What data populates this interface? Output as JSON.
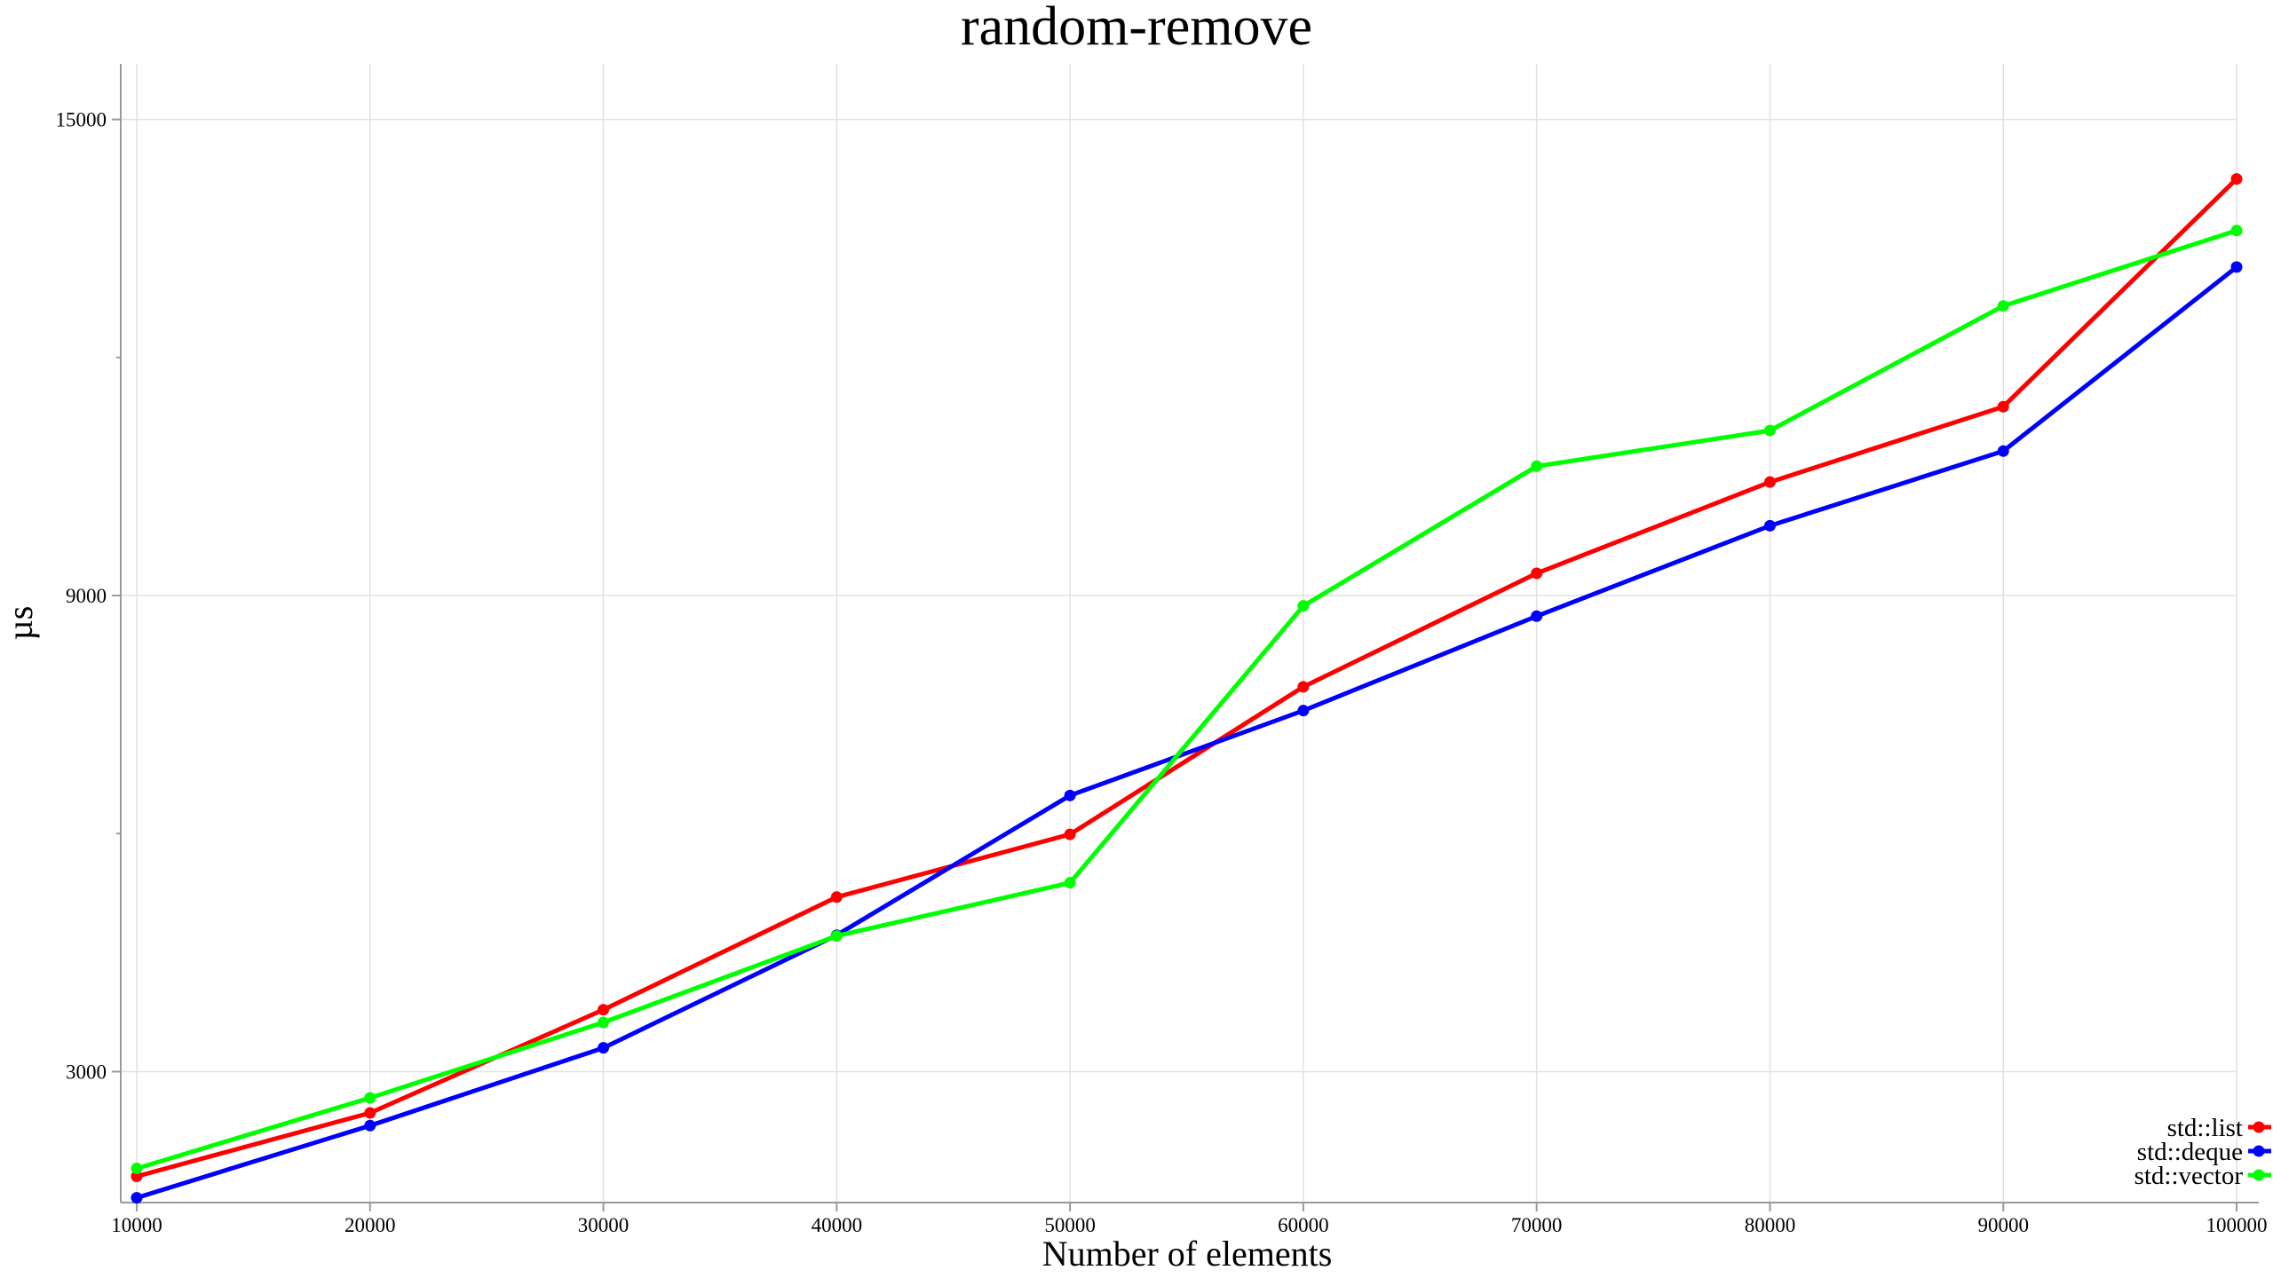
{
  "chart_data": {
    "type": "line",
    "title": "random-remove",
    "xlabel": "Number of elements",
    "ylabel": "µs",
    "x": [
      10000,
      20000,
      30000,
      40000,
      50000,
      60000,
      70000,
      80000,
      90000,
      100000
    ],
    "x_ticks": [
      "10000",
      "20000",
      "30000",
      "40000",
      "50000",
      "60000",
      "70000",
      "80000",
      "90000",
      "100000"
    ],
    "xlim": [
      10000,
      100000
    ],
    "y_ticks": [
      3000,
      9000,
      15000
    ],
    "y_tick_labels": [
      "3000",
      "9000",
      "15000"
    ],
    "ylim": [
      1350,
      15700
    ],
    "grid": true,
    "legend_position": "bottom-right",
    "series": [
      {
        "name": "std::list",
        "color": "#ff0000",
        "values": [
          1680,
          2480,
          3780,
          5200,
          5990,
          7850,
          9280,
          10430,
          11380,
          14250
        ]
      },
      {
        "name": "std::deque",
        "color": "#0000ff",
        "values": [
          1410,
          2320,
          3300,
          4720,
          6480,
          7550,
          8740,
          9880,
          10820,
          13140
        ]
      },
      {
        "name": "std::vector",
        "color": "#00ff00",
        "values": [
          1780,
          2670,
          3620,
          4710,
          5380,
          8870,
          10630,
          11080,
          12650,
          13600
        ]
      }
    ]
  }
}
